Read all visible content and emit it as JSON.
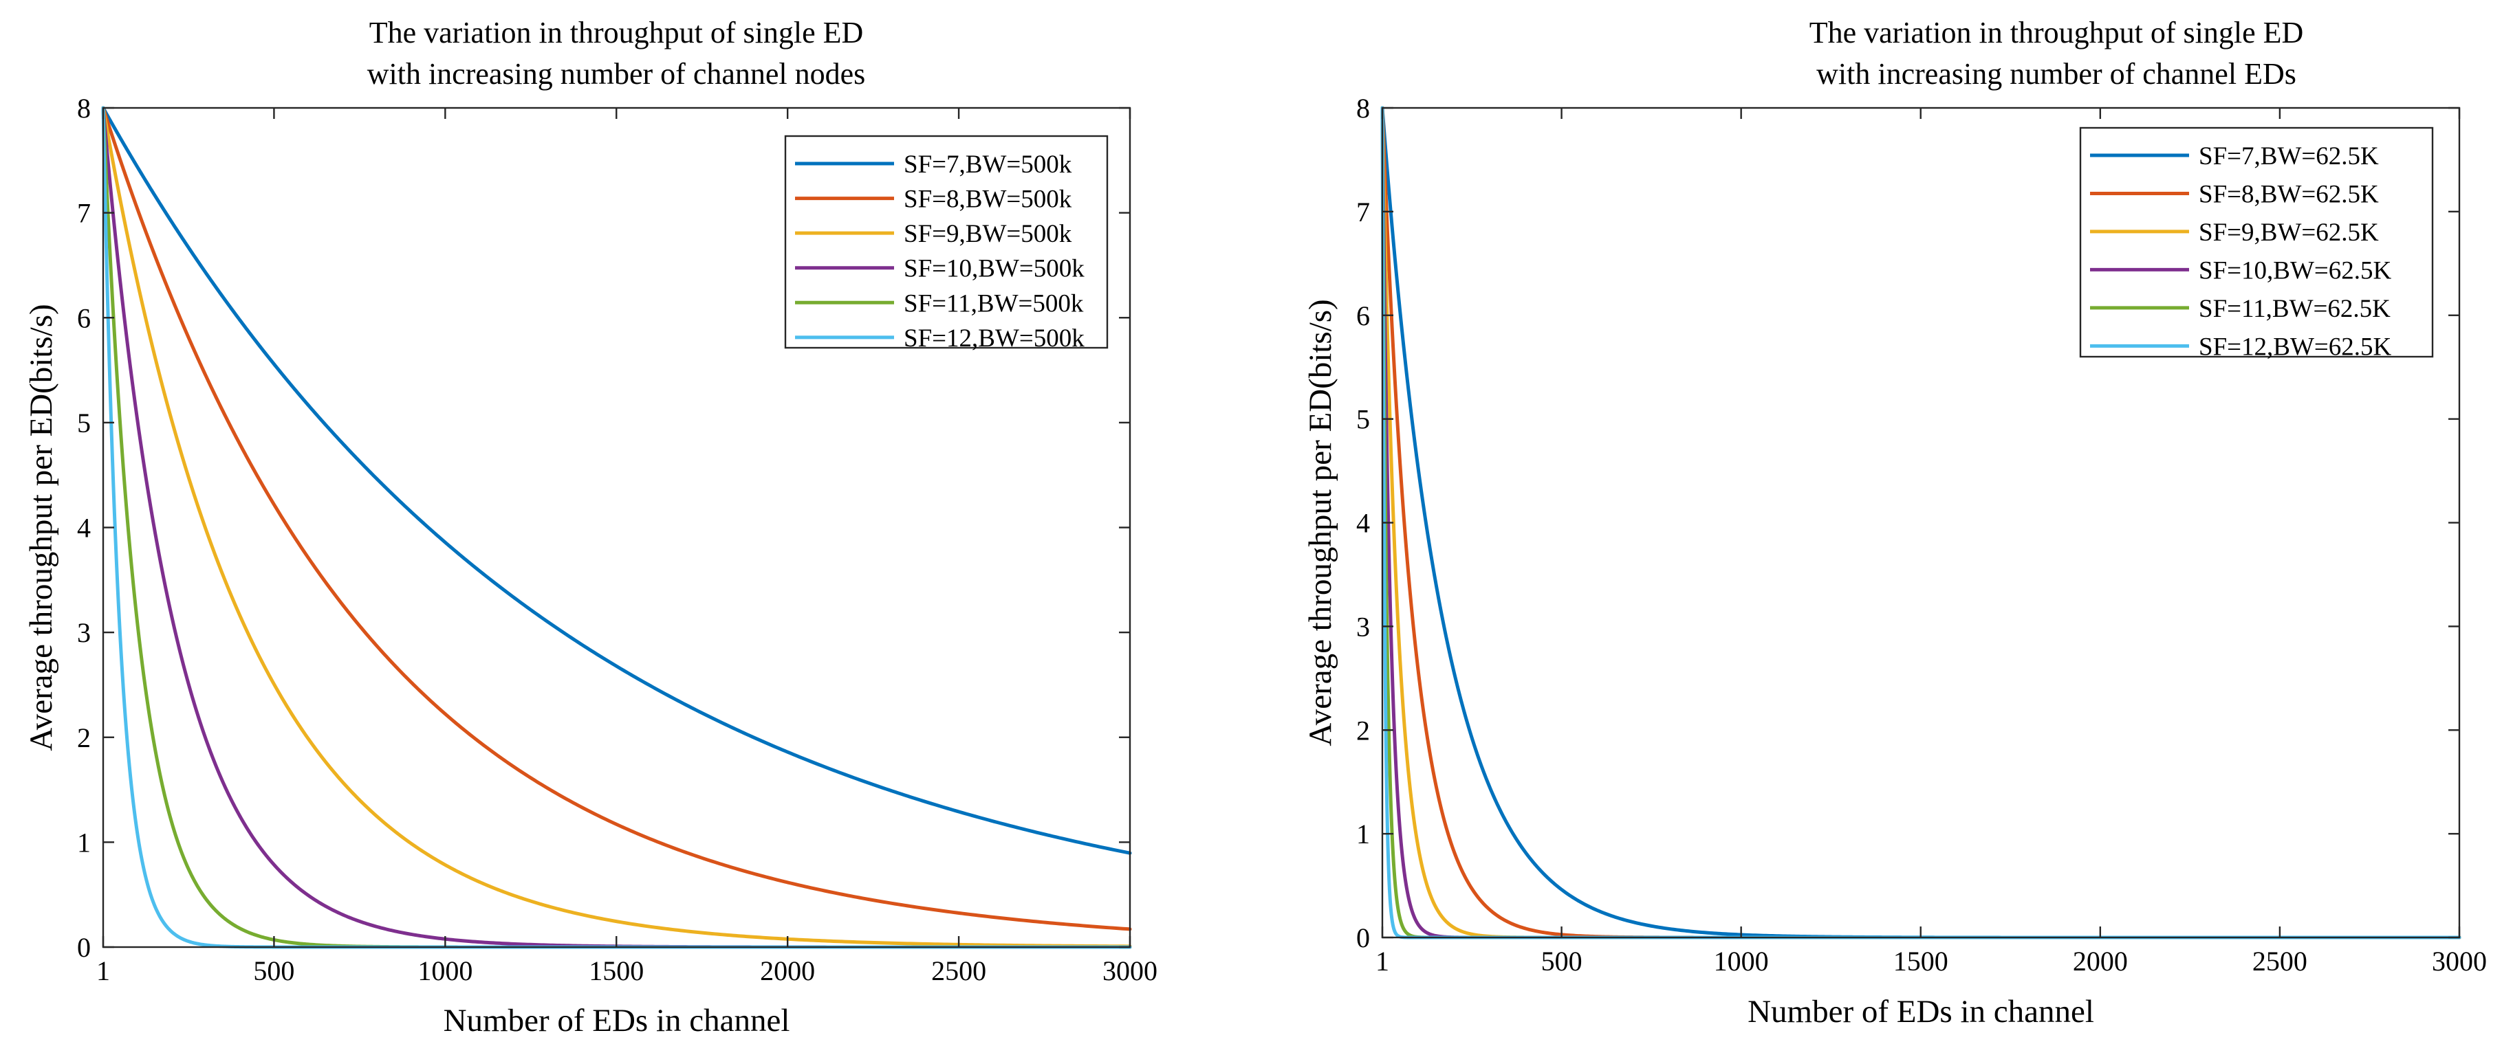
{
  "chart_data": [
    {
      "type": "line",
      "title": [
        "The variation in throughput of single ED",
        "with increasing number of channel nodes"
      ],
      "xlabel": "Number of EDs in channel",
      "ylabel": "Average throughput per ED(bits/s)",
      "xlim": [
        1,
        3000
      ],
      "ylim": [
        0,
        8
      ],
      "xticks": [
        1,
        500,
        1000,
        1500,
        2000,
        2500,
        3000
      ],
      "xtick_labels": [
        "1",
        "500",
        "1000",
        "1500",
        "2000",
        "2500",
        "3000"
      ],
      "yticks": [
        0,
        1,
        2,
        3,
        4,
        5,
        6,
        7,
        8
      ],
      "ytick_labels": [
        "0",
        "1",
        "2",
        "3",
        "4",
        "5",
        "6",
        "7",
        "8"
      ],
      "legend_position": "top-right",
      "series": [
        {
          "name": "SF=7,BW=500k",
          "color": "#0072BD",
          "y0": 8,
          "decay_n": 1370
        },
        {
          "name": "SF=8,BW=500k",
          "color": "#D95319",
          "y0": 8,
          "decay_n": 780
        },
        {
          "name": "SF=9,BW=500k",
          "color": "#EDB120",
          "y0": 8,
          "decay_n": 430
        },
        {
          "name": "SF=10,BW=500k",
          "color": "#7E2F8E",
          "y0": 8,
          "decay_n": 215
        },
        {
          "name": "SF=11,BW=500k",
          "color": "#77AC30",
          "y0": 8,
          "decay_n": 105
        },
        {
          "name": "SF=12,BW=500k",
          "color": "#4DBEEE",
          "y0": 8,
          "decay_n": 50
        }
      ]
    },
    {
      "type": "line",
      "title": [
        "The variation in throughput of single ED",
        "with increasing number of channel EDs"
      ],
      "xlabel": "Number of EDs in channel",
      "ylabel": "Average throughput per ED(bits/s)",
      "xlim": [
        1,
        3000
      ],
      "ylim": [
        0,
        8
      ],
      "xticks": [
        1,
        500,
        1000,
        1500,
        2000,
        2500,
        3000
      ],
      "xtick_labels": [
        "1",
        "500",
        "1000",
        "1500",
        "2000",
        "2500",
        "3000"
      ],
      "yticks": [
        0,
        1,
        2,
        3,
        4,
        5,
        6,
        7,
        8
      ],
      "ytick_labels": [
        "0",
        "1",
        "2",
        "3",
        "4",
        "5",
        "6",
        "7",
        "8"
      ],
      "legend_position": "top-right",
      "series": [
        {
          "name": "SF=7,BW=62.5K",
          "color": "#0072BD",
          "y0": 8,
          "decay_n": 175
        },
        {
          "name": "SF=8,BW=62.5K",
          "color": "#D95319",
          "y0": 8,
          "decay_n": 88
        },
        {
          "name": "SF=9,BW=62.5K",
          "color": "#EDB120",
          "y0": 8,
          "decay_n": 45
        },
        {
          "name": "SF=10,BW=62.5K",
          "color": "#7E2F8E",
          "y0": 8,
          "decay_n": 24
        },
        {
          "name": "SF=11,BW=62.5K",
          "color": "#77AC30",
          "y0": 8,
          "decay_n": 13
        },
        {
          "name": "SF=12,BW=62.5K",
          "color": "#4DBEEE",
          "y0": 8,
          "decay_n": 7
        }
      ]
    }
  ]
}
